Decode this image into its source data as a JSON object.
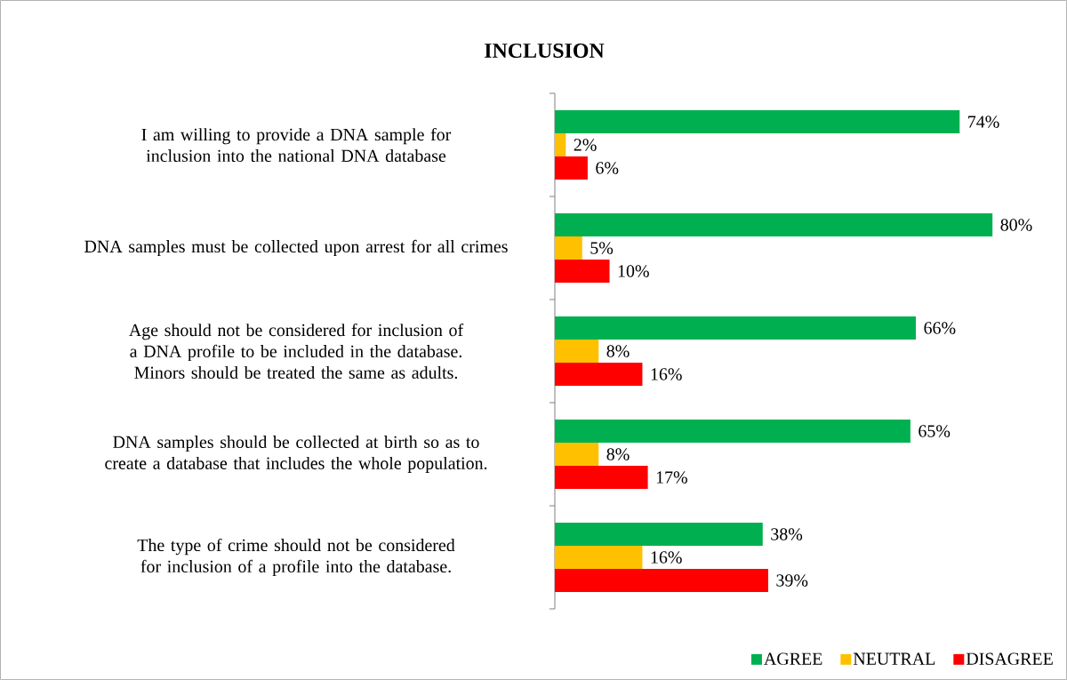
{
  "chart_data": {
    "type": "bar",
    "orientation": "horizontal",
    "title": "INCLUSION",
    "categories": [
      "I am willing to provide a DNA sample for inclusion into the national DNA database",
      "DNA samples must be collected upon arrest for all crimes",
      "Age should not be considered for inclusion of a DNA profile to be included in the database. Minors should be treated the same as adults.",
      "DNA samples should be collected at birth so as to create a database that includes the whole population.",
      "The type of crime should not be considered for inclusion of a profile into the database."
    ],
    "series": [
      {
        "name": "AGREE",
        "color": "#00b050",
        "values": [
          74,
          80,
          66,
          65,
          38
        ],
        "value_labels": [
          "74%",
          "80%",
          "66%",
          "65%",
          "38%"
        ]
      },
      {
        "name": "NEUTRAL",
        "color": "#ffc000",
        "values": [
          2,
          5,
          8,
          8,
          16
        ],
        "value_labels": [
          "2%",
          "5%",
          "8%",
          "8%",
          "16%"
        ]
      },
      {
        "name": "DISAGREE",
        "color": "#ff0000",
        "values": [
          6,
          10,
          16,
          17,
          39
        ],
        "value_labels": [
          "6%",
          "10%",
          "16%",
          "17%",
          "39%"
        ]
      }
    ],
    "legend": "bottom"
  }
}
